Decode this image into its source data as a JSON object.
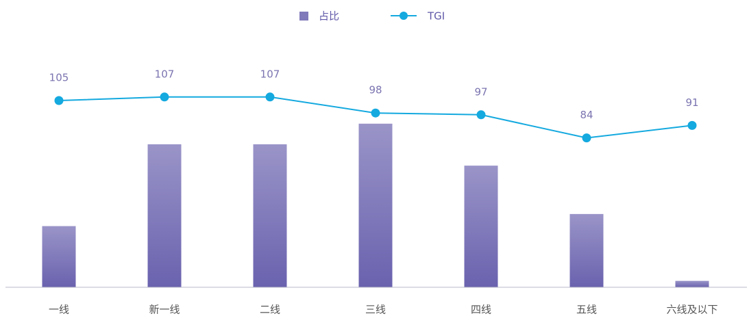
{
  "chart_data": {
    "type": "bar_line",
    "categories": [
      "一线",
      "新一线",
      "二线",
      "三线",
      "四线",
      "五线",
      "六线及以下"
    ],
    "series": [
      {
        "name": "占比",
        "type": "bar",
        "color": "#6a62ae",
        "values": [
          8.6,
          20.1,
          20.1,
          23.0,
          17.1,
          10.3,
          0.9
        ]
      },
      {
        "name": "TGI",
        "type": "line",
        "axis": "y2",
        "color": "#14a9df",
        "values": [
          105,
          107,
          107,
          98,
          97,
          84,
          91
        ]
      }
    ],
    "ylim": [
      0,
      30
    ],
    "y2lim": [
      0,
      120
    ]
  }
}
